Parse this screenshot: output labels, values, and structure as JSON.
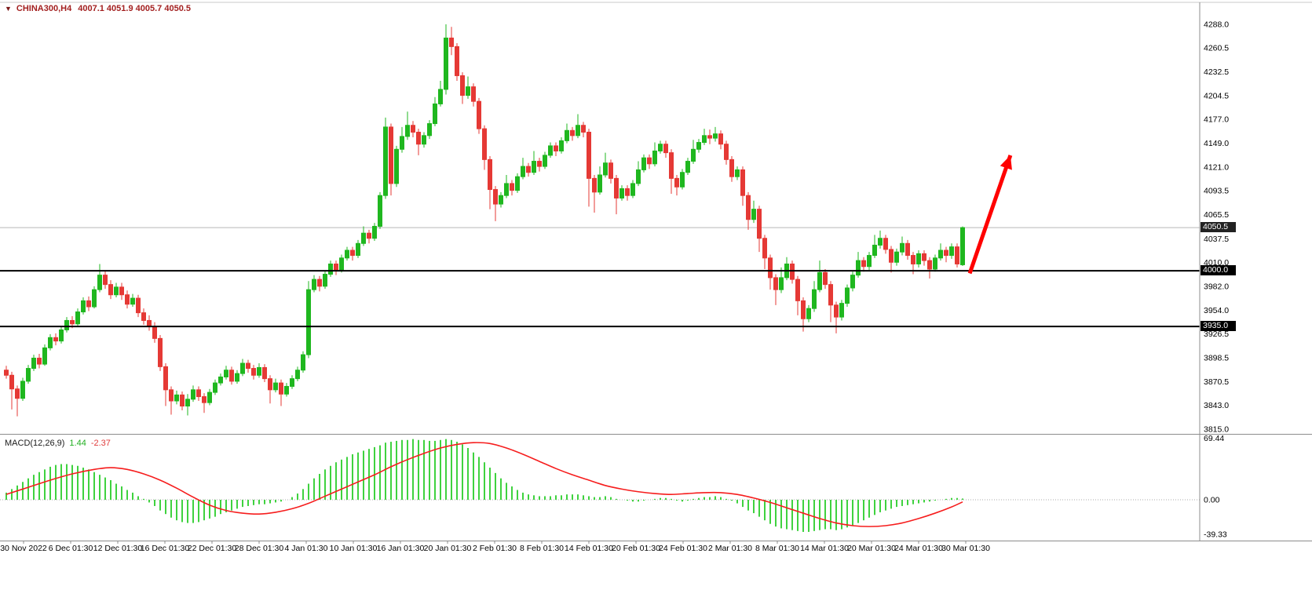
{
  "header": {
    "dropdown_icon": "▼",
    "symbol": "CHINA300,H4",
    "ohlc": "4007.1 4051.9 4005.7 4050.5"
  },
  "price_axis": {
    "labels": [
      "4288.0",
      "4260.5",
      "4232.5",
      "4204.5",
      "4177.0",
      "4149.0",
      "4121.0",
      "4093.5",
      "4065.5",
      "4037.5",
      "4010.0",
      "3982.0",
      "3954.0",
      "3926.5",
      "3898.5",
      "3870.5",
      "3843.0",
      "3815.0"
    ]
  },
  "time_axis": {
    "labels": [
      "30 Nov 2022",
      "6 Dec 01:30",
      "12 Dec 01:30",
      "16 Dec 01:30",
      "22 Dec 01:30",
      "28 Dec 01:30",
      "4 Jan 01:30",
      "10 Jan 01:30",
      "16 Jan 01:30",
      "20 Jan 01:30",
      "2 Feb 01:30",
      "8 Feb 01:30",
      "14 Feb 01:30",
      "20 Feb 01:30",
      "24 Feb 01:30",
      "2 Mar 01:30",
      "8 Mar 01:30",
      "14 Mar 01:30",
      "20 Mar 01:30",
      "24 Mar 01:30",
      "30 Mar 01:30"
    ]
  },
  "levels": {
    "current_price": {
      "value": 4050.5,
      "label": "4050.5"
    },
    "hlines": [
      {
        "value": 4000.0,
        "label": "4000.0"
      },
      {
        "value": 3935.0,
        "label": "3935.0"
      }
    ]
  },
  "macd_panel": {
    "indicator_label": "MACD(12,26,9)",
    "main_value": "1.44",
    "signal_value": "-2.37",
    "axis_labels": [
      "69.44",
      "0.00",
      "-39.33"
    ]
  },
  "annotation": {
    "type": "arrow-up",
    "color": "#ff0000",
    "from_bar": 175.3,
    "from_price": 3997,
    "to_bar": 182.7,
    "to_price": 4135
  },
  "colors": {
    "bull": "#1fb71f",
    "bear": "#e53935",
    "histogram": "#3fd23f",
    "signal": "#f61d1d",
    "level_line": "#000000",
    "bid_line": "#b8b8b8"
  },
  "chart_data": {
    "type": "candlestick",
    "symbol": "CHINA300",
    "timeframe": "H4",
    "title": "CHINA300 H4 with MACD(12,26,9)",
    "price_range": {
      "min": 3815.0,
      "max": 4288.0
    },
    "macd_range": {
      "min": -39.33,
      "max": 69.44
    },
    "candles": [
      [
        3884,
        3889,
        3874,
        3878
      ],
      [
        3878,
        3882,
        3838,
        3862
      ],
      [
        3862,
        3866,
        3830,
        3851
      ],
      [
        3851,
        3875,
        3848,
        3871
      ],
      [
        3871,
        3890,
        3868,
        3886
      ],
      [
        3886,
        3902,
        3883,
        3898
      ],
      [
        3898,
        3903,
        3886,
        3891
      ],
      [
        3891,
        3914,
        3889,
        3910
      ],
      [
        3910,
        3926,
        3907,
        3922
      ],
      [
        3922,
        3927,
        3913,
        3918
      ],
      [
        3918,
        3935,
        3915,
        3931
      ],
      [
        3931,
        3946,
        3928,
        3942
      ],
      [
        3942,
        3947,
        3933,
        3938
      ],
      [
        3938,
        3956,
        3936,
        3952
      ],
      [
        3952,
        3969,
        3949,
        3965
      ],
      [
        3965,
        3970,
        3953,
        3958
      ],
      [
        3958,
        3982,
        3956,
        3978
      ],
      [
        3978,
        4008,
        3975,
        3995
      ],
      [
        3995,
        4000,
        3979,
        3984
      ],
      [
        3984,
        3989,
        3967,
        3972
      ],
      [
        3972,
        3986,
        3969,
        3981
      ],
      [
        3981,
        3986,
        3966,
        3972
      ],
      [
        3972,
        3977,
        3956,
        3961
      ],
      [
        3961,
        3973,
        3958,
        3968
      ],
      [
        3968,
        3972,
        3946,
        3951
      ],
      [
        3951,
        3956,
        3937,
        3942
      ],
      [
        3942,
        3948,
        3930,
        3935
      ],
      [
        3935,
        3940,
        3916,
        3921
      ],
      [
        3921,
        3925,
        3883,
        3888
      ],
      [
        3888,
        3892,
        3842,
        3861
      ],
      [
        3861,
        3865,
        3832,
        3848
      ],
      [
        3848,
        3860,
        3844,
        3855
      ],
      [
        3855,
        3859,
        3837,
        3842
      ],
      [
        3842,
        3856,
        3831,
        3850
      ],
      [
        3850,
        3866,
        3847,
        3861
      ],
      [
        3861,
        3865,
        3848,
        3853
      ],
      [
        3853,
        3857,
        3834,
        3846
      ],
      [
        3846,
        3862,
        3843,
        3858
      ],
      [
        3858,
        3873,
        3855,
        3869
      ],
      [
        3869,
        3880,
        3866,
        3876
      ],
      [
        3876,
        3889,
        3873,
        3884
      ],
      [
        3884,
        3888,
        3867,
        3871
      ],
      [
        3871,
        3884,
        3868,
        3880
      ],
      [
        3880,
        3897,
        3877,
        3892
      ],
      [
        3892,
        3896,
        3881,
        3886
      ],
      [
        3886,
        3890,
        3873,
        3878
      ],
      [
        3878,
        3892,
        3875,
        3887
      ],
      [
        3887,
        3891,
        3870,
        3874
      ],
      [
        3874,
        3878,
        3845,
        3861
      ],
      [
        3861,
        3874,
        3858,
        3869
      ],
      [
        3869,
        3873,
        3842,
        3856
      ],
      [
        3856,
        3869,
        3853,
        3865
      ],
      [
        3865,
        3878,
        3862,
        3874
      ],
      [
        3874,
        3888,
        3871,
        3884
      ],
      [
        3884,
        3906,
        3881,
        3902
      ],
      [
        3902,
        3988,
        3898,
        3978
      ],
      [
        3978,
        3995,
        3975,
        3990
      ],
      [
        3990,
        3994,
        3976,
        3982
      ],
      [
        3982,
        4000,
        3979,
        3996
      ],
      [
        3996,
        4012,
        3993,
        4008
      ],
      [
        4008,
        4012,
        3995,
        4001
      ],
      [
        4001,
        4019,
        3998,
        4015
      ],
      [
        4015,
        4028,
        4012,
        4024
      ],
      [
        4024,
        4028,
        4012,
        4018
      ],
      [
        4018,
        4036,
        4015,
        4032
      ],
      [
        4032,
        4052,
        4029,
        4044
      ],
      [
        4044,
        4048,
        4032,
        4038
      ],
      [
        4038,
        4056,
        4035,
        4052
      ],
      [
        4052,
        4092,
        4049,
        4088
      ],
      [
        4088,
        4179,
        4084,
        4168
      ],
      [
        4168,
        4172,
        4088,
        4102
      ],
      [
        4102,
        4146,
        4098,
        4142
      ],
      [
        4142,
        4168,
        4138,
        4157
      ],
      [
        4157,
        4186,
        4153,
        4170
      ],
      [
        4170,
        4175,
        4156,
        4162
      ],
      [
        4162,
        4166,
        4135,
        4148
      ],
      [
        4148,
        4162,
        4144,
        4158
      ],
      [
        4158,
        4176,
        4154,
        4172
      ],
      [
        4172,
        4203,
        4169,
        4195
      ],
      [
        4195,
        4222,
        4192,
        4212
      ],
      [
        4212,
        4288,
        4206,
        4272
      ],
      [
        4272,
        4285,
        4252,
        4262
      ],
      [
        4262,
        4266,
        4222,
        4228
      ],
      [
        4228,
        4232,
        4195,
        4205
      ],
      [
        4205,
        4227,
        4201,
        4215
      ],
      [
        4215,
        4219,
        4192,
        4198
      ],
      [
        4198,
        4202,
        4160,
        4166
      ],
      [
        4166,
        4170,
        4118,
        4130
      ],
      [
        4130,
        4134,
        4072,
        4095
      ],
      [
        4095,
        4099,
        4058,
        4078
      ],
      [
        4078,
        4092,
        4074,
        4088
      ],
      [
        4088,
        4112,
        4085,
        4102
      ],
      [
        4102,
        4106,
        4088,
        4094
      ],
      [
        4094,
        4114,
        4091,
        4110
      ],
      [
        4110,
        4132,
        4107,
        4122
      ],
      [
        4122,
        4126,
        4110,
        4115
      ],
      [
        4115,
        4140,
        4112,
        4128
      ],
      [
        4128,
        4132,
        4116,
        4122
      ],
      [
        4122,
        4139,
        4119,
        4135
      ],
      [
        4135,
        4150,
        4132,
        4146
      ],
      [
        4146,
        4150,
        4134,
        4140
      ],
      [
        4140,
        4156,
        4137,
        4152
      ],
      [
        4152,
        4172,
        4149,
        4164
      ],
      [
        4164,
        4168,
        4152,
        4158
      ],
      [
        4158,
        4183,
        4155,
        4170
      ],
      [
        4170,
        4174,
        4156,
        4162
      ],
      [
        4162,
        4166,
        4075,
        4108
      ],
      [
        4108,
        4112,
        4068,
        4092
      ],
      [
        4092,
        4122,
        4089,
        4112
      ],
      [
        4112,
        4138,
        4109,
        4126
      ],
      [
        4126,
        4130,
        4102,
        4108
      ],
      [
        4108,
        4112,
        4066,
        4085
      ],
      [
        4085,
        4100,
        4082,
        4096
      ],
      [
        4096,
        4100,
        4082,
        4088
      ],
      [
        4088,
        4106,
        4085,
        4102
      ],
      [
        4102,
        4128,
        4099,
        4118
      ],
      [
        4118,
        4136,
        4115,
        4132
      ],
      [
        4132,
        4136,
        4119,
        4125
      ],
      [
        4125,
        4150,
        4122,
        4140
      ],
      [
        4140,
        4152,
        4137,
        4148
      ],
      [
        4148,
        4152,
        4132,
        4138
      ],
      [
        4138,
        4142,
        4090,
        4108
      ],
      [
        4108,
        4112,
        4088,
        4098
      ],
      [
        4098,
        4119,
        4095,
        4115
      ],
      [
        4115,
        4132,
        4112,
        4128
      ],
      [
        4128,
        4153,
        4125,
        4142
      ],
      [
        4142,
        4154,
        4138,
        4150
      ],
      [
        4150,
        4166,
        4147,
        4158
      ],
      [
        4158,
        4165,
        4148,
        4155
      ],
      [
        4155,
        4168,
        4151,
        4160
      ],
      [
        4160,
        4164,
        4142,
        4148
      ],
      [
        4148,
        4152,
        4124,
        4130
      ],
      [
        4130,
        4134,
        4104,
        4110
      ],
      [
        4110,
        4122,
        4106,
        4118
      ],
      [
        4118,
        4122,
        4076,
        4088
      ],
      [
        4088,
        4092,
        4048,
        4060
      ],
      [
        4060,
        4082,
        4056,
        4072
      ],
      [
        4072,
        4076,
        4022,
        4038
      ],
      [
        4038,
        4042,
        4002,
        4015
      ],
      [
        4015,
        4019,
        3978,
        3992
      ],
      [
        3992,
        3996,
        3960,
        3978
      ],
      [
        3978,
        4004,
        3974,
        3992
      ],
      [
        3992,
        4016,
        3989,
        4008
      ],
      [
        4008,
        4012,
        3985,
        3990
      ],
      [
        3990,
        3994,
        3948,
        3965
      ],
      [
        3965,
        3969,
        3929,
        3944
      ],
      [
        3944,
        3960,
        3940,
        3956
      ],
      [
        3956,
        3988,
        3952,
        3978
      ],
      [
        3978,
        4012,
        3975,
        3998
      ],
      [
        3998,
        4002,
        3979,
        3984
      ],
      [
        3984,
        3988,
        3940,
        3960
      ],
      [
        3960,
        3964,
        3927,
        3946
      ],
      [
        3946,
        3966,
        3942,
        3962
      ],
      [
        3962,
        3984,
        3958,
        3980
      ],
      [
        3980,
        3999,
        3976,
        3995
      ],
      [
        3995,
        4022,
        3992,
        4012
      ],
      [
        4012,
        4016,
        3999,
        4005
      ],
      [
        4005,
        4022,
        4001,
        4018
      ],
      [
        4018,
        4042,
        4015,
        4030
      ],
      [
        4030,
        4047,
        4026,
        4038
      ],
      [
        4038,
        4042,
        4020,
        4025
      ],
      [
        4025,
        4029,
        3998,
        4010
      ],
      [
        4010,
        4026,
        4006,
        4022
      ],
      [
        4022,
        4040,
        4018,
        4032
      ],
      [
        4032,
        4036,
        4013,
        4018
      ],
      [
        4018,
        4022,
        3996,
        4008
      ],
      [
        4008,
        4024,
        4004,
        4020
      ],
      [
        4020,
        4024,
        4006,
        4012
      ],
      [
        4012,
        4016,
        3991,
        4002
      ],
      [
        4002,
        4019,
        3999,
        4015
      ],
      [
        4015,
        4032,
        4012,
        4024
      ],
      [
        4024,
        4028,
        4010,
        4018
      ],
      [
        4018,
        4032,
        4014,
        4028
      ],
      [
        4028,
        4032,
        4004,
        4008
      ],
      [
        4007.1,
        4051.9,
        4005.7,
        4050.5
      ]
    ],
    "macd_histogram": [
      8,
      12,
      16,
      20,
      24,
      28,
      31,
      34,
      37,
      39,
      40,
      40,
      39,
      38,
      36,
      34,
      31,
      28,
      25,
      22,
      18,
      15,
      11,
      8,
      4,
      1,
      -3,
      -7,
      -12,
      -16,
      -20,
      -23,
      -25,
      -26,
      -26,
      -25,
      -23,
      -21,
      -19,
      -16,
      -14,
      -12,
      -10,
      -8,
      -7,
      -6,
      -5,
      -5,
      -4,
      -3,
      -2,
      0,
      3,
      7,
      12,
      18,
      24,
      29,
      34,
      38,
      42,
      45,
      48,
      51,
      53,
      55,
      57,
      59,
      61,
      64,
      65,
      66,
      67,
      67,
      68,
      67,
      67,
      66,
      66,
      67,
      68,
      67,
      65,
      62,
      58,
      53,
      48,
      42,
      36,
      30,
      24,
      19,
      15,
      11,
      8,
      6,
      5,
      4,
      4,
      4,
      5,
      5,
      6,
      6,
      6,
      5,
      4,
      3,
      3,
      4,
      3,
      1,
      0,
      -1,
      -2,
      -2,
      -1,
      0,
      1,
      2,
      2,
      1,
      -1,
      -2,
      -1,
      1,
      2,
      3,
      3,
      4,
      3,
      1,
      -1,
      -4,
      -8,
      -12,
      -15,
      -19,
      -23,
      -27,
      -30,
      -32,
      -33,
      -34,
      -35,
      -36,
      -36,
      -35,
      -34,
      -33,
      -33,
      -34,
      -33,
      -31,
      -29,
      -26,
      -23,
      -20,
      -17,
      -14,
      -12,
      -10,
      -8,
      -7,
      -6,
      -5,
      -4,
      -3,
      -2,
      -1,
      0,
      1,
      2,
      2,
      1.4
    ],
    "macd_signal_points": [
      [
        0,
        6
      ],
      [
        4,
        14
      ],
      [
        8,
        22
      ],
      [
        12,
        29
      ],
      [
        16,
        34
      ],
      [
        19,
        36
      ],
      [
        22,
        34
      ],
      [
        25,
        29
      ],
      [
        28,
        22
      ],
      [
        31,
        13
      ],
      [
        34,
        3
      ],
      [
        37,
        -6
      ],
      [
        40,
        -12
      ],
      [
        43,
        -15
      ],
      [
        46,
        -16
      ],
      [
        49,
        -14
      ],
      [
        52,
        -10
      ],
      [
        55,
        -4
      ],
      [
        58,
        4
      ],
      [
        61,
        12
      ],
      [
        64,
        20
      ],
      [
        67,
        28
      ],
      [
        70,
        37
      ],
      [
        73,
        45
      ],
      [
        76,
        52
      ],
      [
        79,
        58
      ],
      [
        82,
        62
      ],
      [
        85,
        64
      ],
      [
        88,
        63
      ],
      [
        91,
        58
      ],
      [
        94,
        51
      ],
      [
        97,
        43
      ],
      [
        100,
        35
      ],
      [
        103,
        28
      ],
      [
        106,
        22
      ],
      [
        109,
        16
      ],
      [
        112,
        12
      ],
      [
        115,
        9
      ],
      [
        118,
        7
      ],
      [
        121,
        6
      ],
      [
        124,
        7
      ],
      [
        127,
        8
      ],
      [
        130,
        8
      ],
      [
        133,
        6
      ],
      [
        136,
        2
      ],
      [
        139,
        -3
      ],
      [
        142,
        -9
      ],
      [
        145,
        -15
      ],
      [
        148,
        -21
      ],
      [
        151,
        -26
      ],
      [
        154,
        -29
      ],
      [
        157,
        -30
      ],
      [
        160,
        -29
      ],
      [
        163,
        -26
      ],
      [
        166,
        -21
      ],
      [
        169,
        -15
      ],
      [
        172,
        -8
      ],
      [
        174,
        -2.4
      ]
    ]
  }
}
